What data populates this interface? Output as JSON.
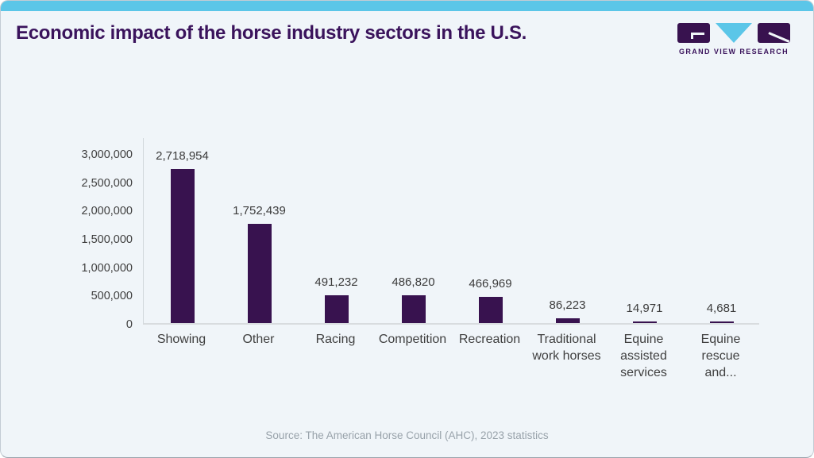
{
  "header": {
    "title": "Economic impact of the horse industry sectors in the U.S.",
    "logo": {
      "brand": "GRAND VIEW RESEARCH",
      "icons": [
        "logo-g-block",
        "logo-v-triangle",
        "logo-r-block"
      ]
    }
  },
  "chart_data": {
    "type": "bar",
    "title": "Economic impact of the horse industry sectors in the U.S.",
    "categories": [
      "Showing",
      "Other",
      "Racing",
      "Competition",
      "Recreation",
      "Traditional work horses",
      "Equine assisted services",
      "Equine rescue and..."
    ],
    "category_display": [
      "Showing",
      "Other",
      "Racing",
      "Competition",
      "Recreation",
      "Traditional\nwork horses",
      "Equine\nassisted\nservices",
      "Equine\nrescue\nand..."
    ],
    "values": [
      2718954,
      1752439,
      491232,
      486820,
      466969,
      86223,
      14971,
      4681
    ],
    "value_labels": [
      "2,718,954",
      "1,752,439",
      "491,232",
      "486,820",
      "466,969",
      "86,223",
      "14,971",
      "4,681"
    ],
    "xlabel": "",
    "ylabel": "",
    "ylim": [
      0,
      3000000
    ],
    "ytick_values": [
      0,
      500000,
      1000000,
      1500000,
      2000000,
      2500000,
      3000000
    ],
    "ytick_labels": [
      "0",
      "500,000",
      "1,000,000",
      "1,500,000",
      "2,000,000",
      "2,500,000",
      "3,000,000"
    ],
    "grid": false,
    "legend": false,
    "bar_color": "#38124f"
  },
  "footer": {
    "source": "Source: The American Horse Council (AHC), 2023 statistics"
  },
  "colors": {
    "accent_cyan": "#5bc6e8",
    "brand_purple": "#38124f",
    "title_purple": "#3a135c",
    "card_background": "#f0f5f9",
    "axis_line": "#d6dade",
    "tick_text": "#3f3f3f",
    "muted_text": "#98a2aa"
  }
}
